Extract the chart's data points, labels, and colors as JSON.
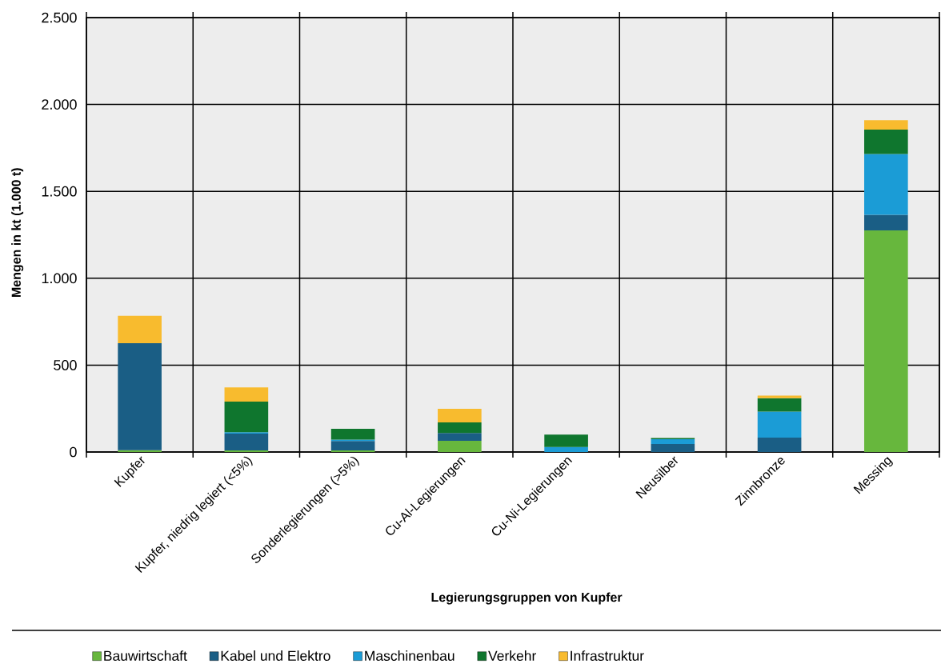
{
  "chart_data": {
    "type": "bar",
    "stacked": true,
    "xlabel": "Legierungsgruppen von Kupfer",
    "ylabel": "Mengen in kt (1.000 t)",
    "categories": [
      "Kupfer",
      "Kupfer, niedrig legiert (<5%)",
      "Sonderlegierungen (>5%)",
      "Cu-Al-Legierungen",
      "Cu-Ni-Legierungen",
      "Neusilber",
      "Zinnbronze",
      "Messing"
    ],
    "series": [
      {
        "name": "Bauwirtschaft",
        "color": "#67b73d",
        "values": [
          10,
          9,
          9,
          64,
          0,
          0,
          0,
          1275
        ]
      },
      {
        "name": "Kabel und Elektro",
        "color": "#1a5e85",
        "values": [
          616,
          97,
          54,
          45,
          0,
          46,
          83,
          90
        ]
      },
      {
        "name": "Maschinenbau",
        "color": "#1b9cd6",
        "values": [
          0,
          8,
          8,
          0,
          29,
          28,
          149,
          350
        ]
      },
      {
        "name": "Verkehr",
        "color": "#0f762e",
        "values": [
          0,
          176,
          62,
          61,
          71,
          7,
          78,
          140
        ]
      },
      {
        "name": "Infrastruktur",
        "color": "#f8bb2e",
        "values": [
          158,
          82,
          0,
          79,
          0,
          0,
          15,
          55
        ]
      }
    ],
    "ylim": [
      0,
      2500
    ],
    "yticks": [
      0,
      500,
      {
        "value": 1000,
        "label": "1.000"
      },
      {
        "value": 1500,
        "label": "1.500"
      },
      {
        "value": 2000,
        "label": "2.000"
      },
      {
        "value": 2500,
        "label": "2.500"
      }
    ],
    "grid": true,
    "legend": "bottom"
  }
}
